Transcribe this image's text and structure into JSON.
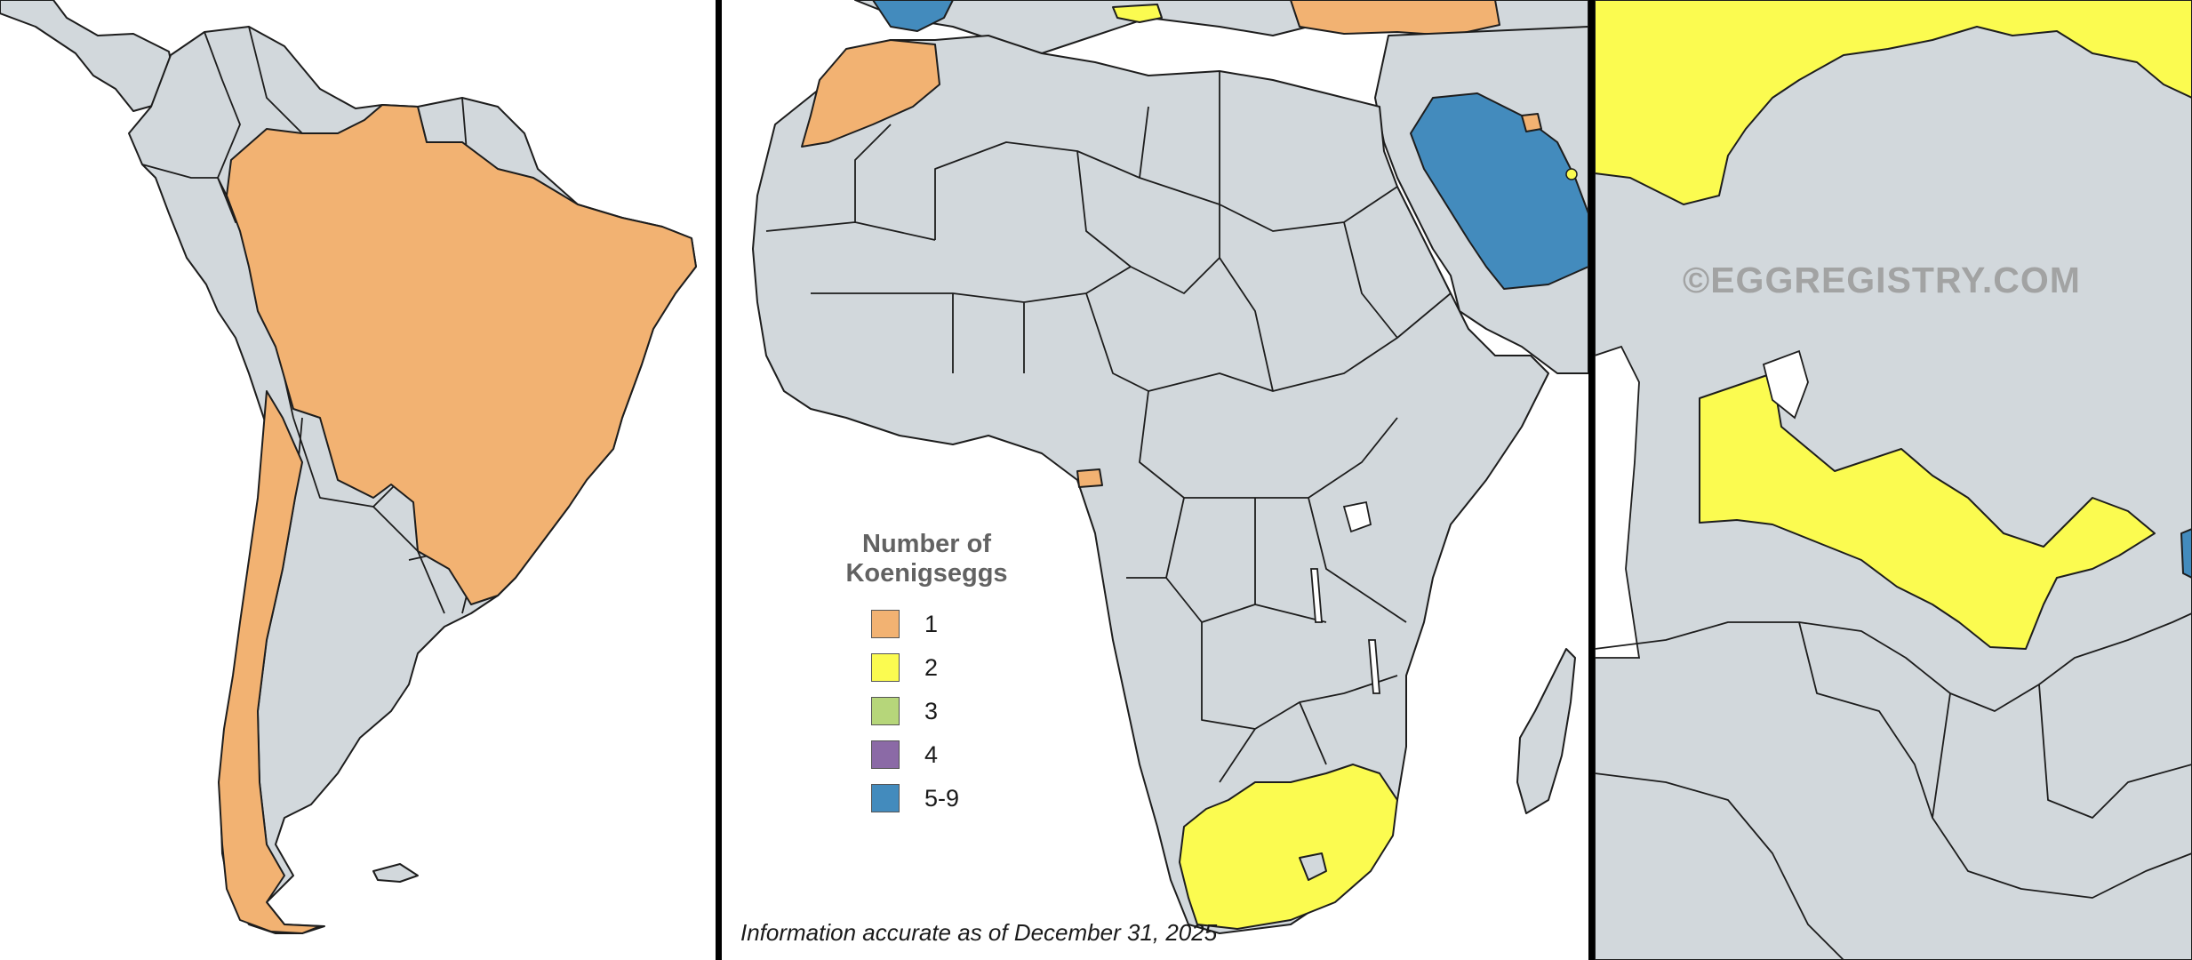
{
  "legend": {
    "title": "Number of\nKoenigseggs",
    "items": [
      {
        "label": "1",
        "color": "#f2b272"
      },
      {
        "label": "2",
        "color": "#fbfb50"
      },
      {
        "label": "3",
        "color": "#b6d67a"
      },
      {
        "label": "4",
        "color": "#8b6aa6"
      },
      {
        "label": "5-9",
        "color": "#438bbd"
      }
    ]
  },
  "watermark": "©EGGREGISTRY.COM",
  "footnote": "Information accurate as of December 31, 2025",
  "colors": {
    "no_data": "#d2d8dc",
    "border": "#1d1d1d",
    "water": "#ffffff"
  }
}
